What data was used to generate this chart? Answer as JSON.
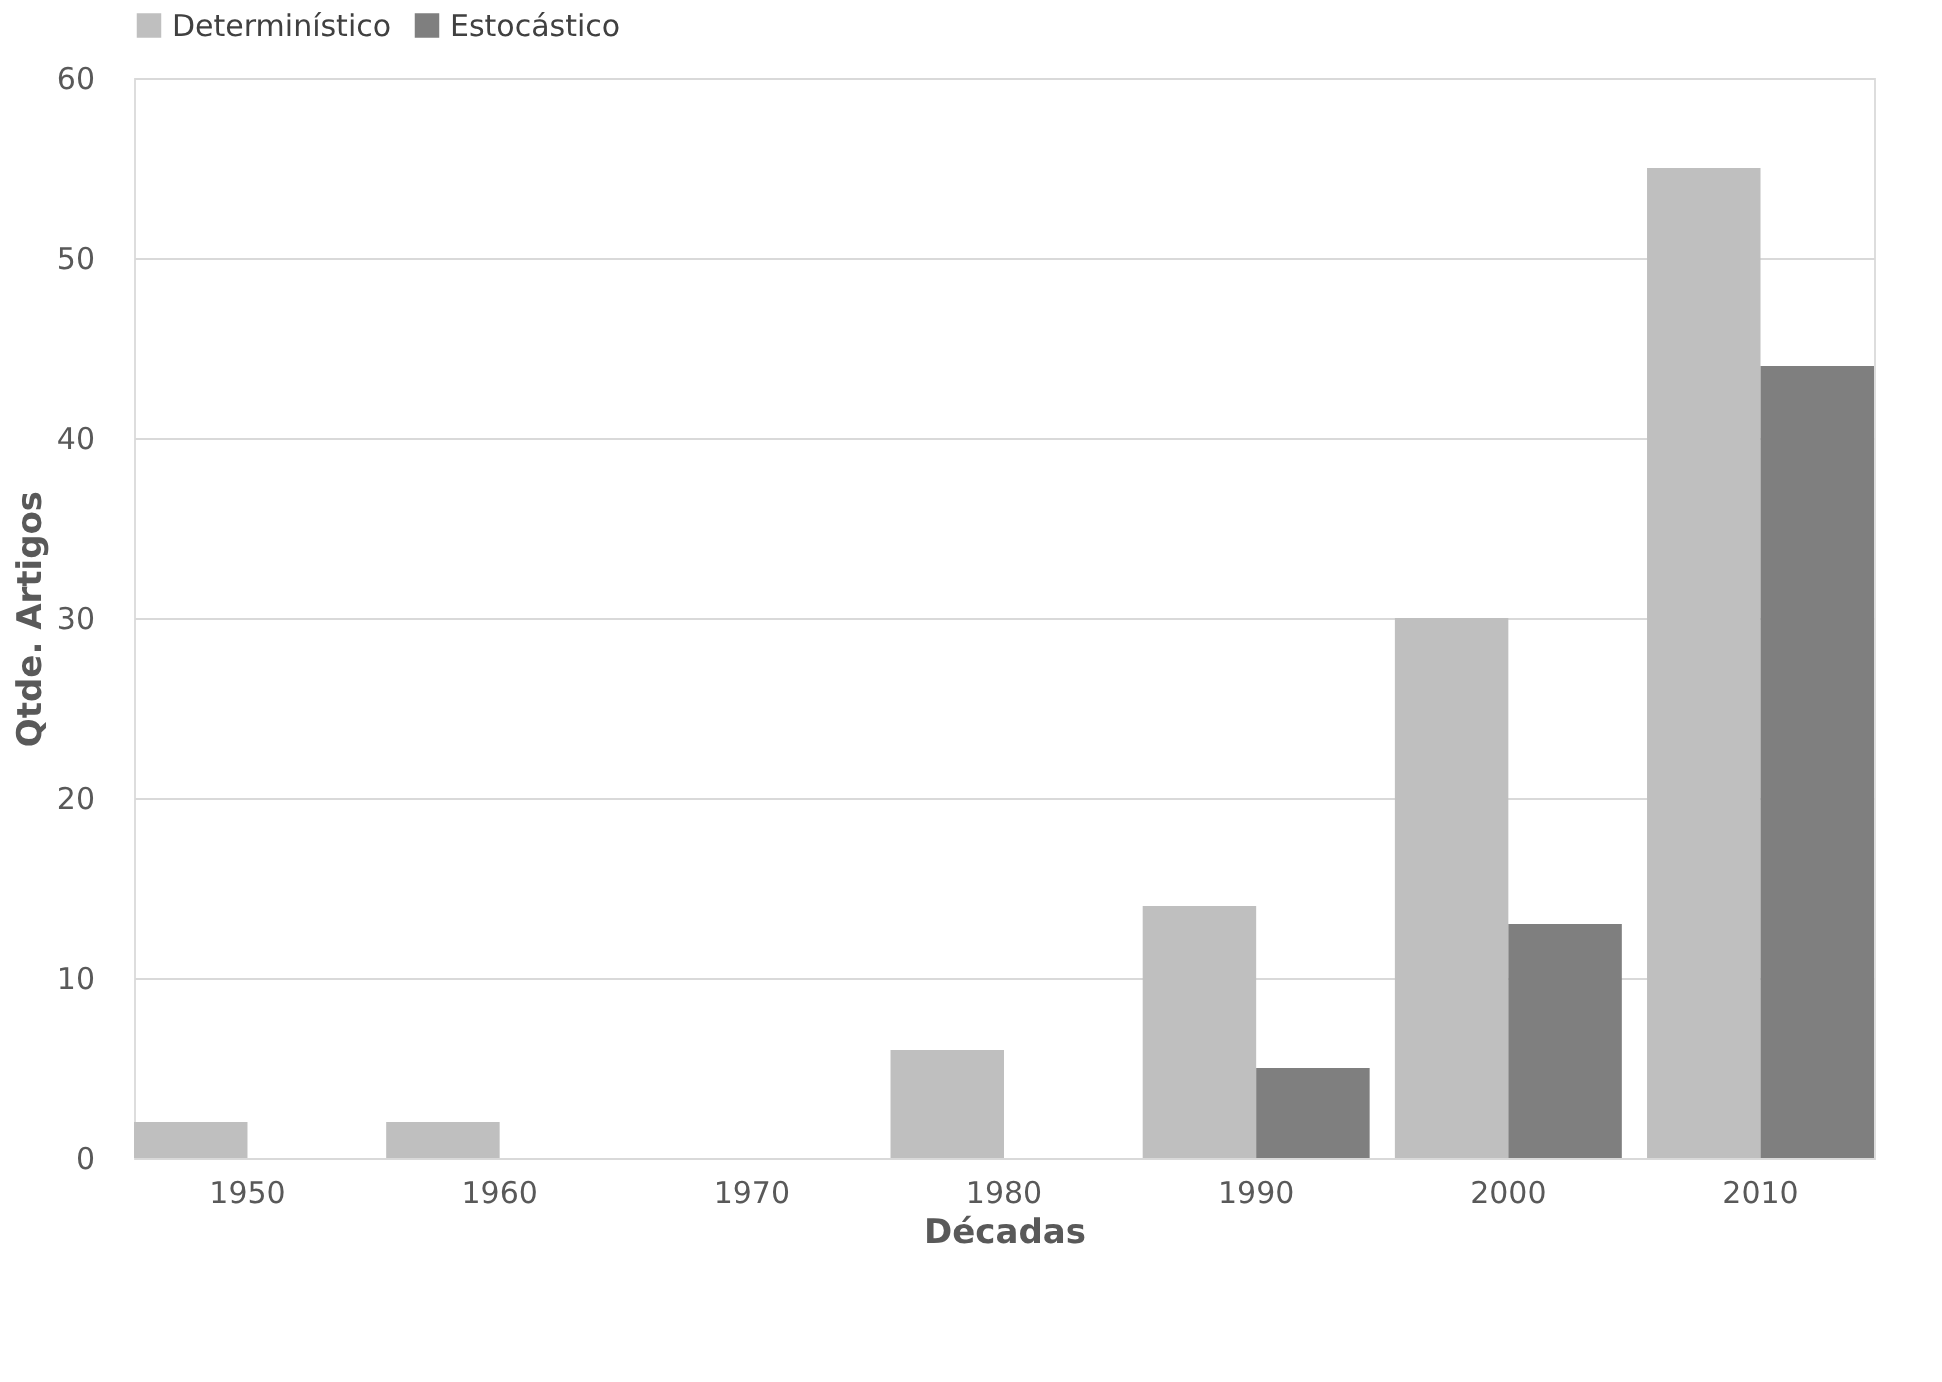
{
  "chart_data": {
    "type": "bar",
    "xlabel": "Décadas",
    "ylabel": "Qtde. Artigos",
    "categories": [
      "1950",
      "1960",
      "1970",
      "1980",
      "1990",
      "2000",
      "2010"
    ],
    "series": [
      {
        "name": "Determinístico",
        "color": "#bfbfbf",
        "values": [
          2,
          2,
          0,
          6,
          14,
          30,
          55
        ]
      },
      {
        "name": "Estocástico",
        "color": "#7f7f7f",
        "values": [
          0,
          0,
          0,
          0,
          5,
          13,
          44
        ]
      }
    ],
    "ylim": [
      0,
      60
    ],
    "yticks": [
      0,
      10,
      20,
      30,
      40,
      50,
      60
    ],
    "grid": "y",
    "legend": "top"
  }
}
